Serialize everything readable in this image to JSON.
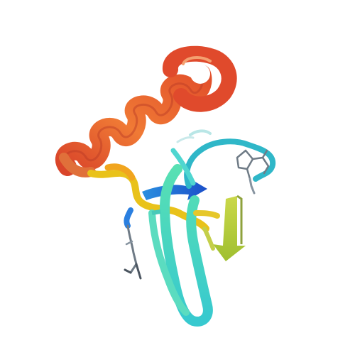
{
  "image": {
    "background": "#ffffff",
    "subject": "protein-ribbon-cartoon",
    "palette": {
      "helix_dark": "#d9452a",
      "helix_mid": "#e8752f",
      "helix_light": "#f08a3a",
      "yellow": "#e9c21a",
      "yellow_green": "#b7cf3a",
      "olive": "#a7b85a",
      "green_cyan": "#52d6a8",
      "cyan": "#4fd6d0",
      "teal": "#2fb7c8",
      "blue": "#1e63d8",
      "mid_blue": "#2a8fe0",
      "sidechain": "#6f7b86"
    }
  }
}
